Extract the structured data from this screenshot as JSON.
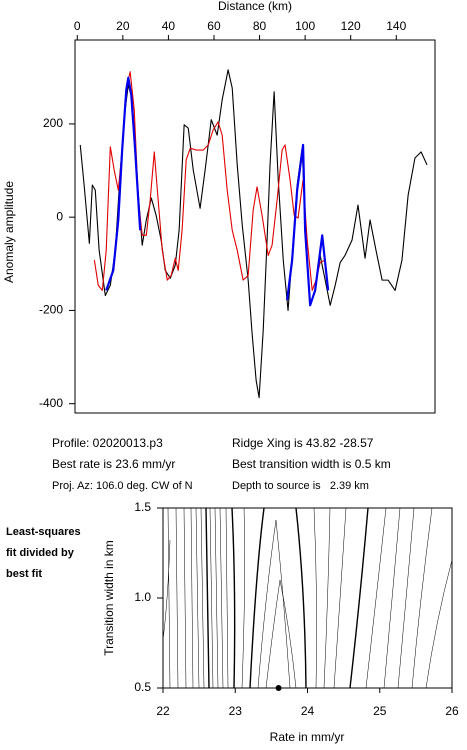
{
  "chart_data": [
    {
      "type": "line",
      "xlabel": "Distance (km)",
      "ylabel": "Anomaly amplitude",
      "xlim": [
        -1,
        157
      ],
      "xticks": [
        0,
        20,
        40,
        60,
        80,
        100,
        120,
        140
      ],
      "ylim": [
        -420,
        380
      ],
      "yticks": [
        -400,
        -200,
        0,
        200
      ],
      "series": [
        {
          "color": "#000000",
          "x": [
            1.3,
            3,
            5.3,
            6.6,
            7.9,
            9.6,
            12.3,
            14.5,
            16.7,
            18.9,
            21,
            22.4,
            24.1,
            26.3,
            28.5,
            30.3,
            32.5,
            34.6,
            36.8,
            38.6,
            40.8,
            43,
            44.7,
            46.9,
            48.7,
            50.9,
            53.9,
            56.1,
            58.8,
            61.4,
            63.6,
            66.2,
            68,
            70.2,
            72.4,
            75,
            76.8,
            78.5,
            79.8,
            81.6,
            83.3,
            84.6,
            86.4,
            88.2,
            90.4,
            92.5,
            94.3,
            96.5,
            98.7,
            100.4,
            102.2,
            104.4,
            106.6,
            108.8,
            111,
            113.2,
            115.4,
            117.5,
            120.6,
            123.2,
            126.3,
            128.5,
            131.1,
            133.8,
            136.4,
            139.5,
            142.5,
            145.2,
            148.2,
            150.9,
            153.5
          ],
          "values": [
            155,
            69,
            -56,
            69,
            58,
            -71,
            -168,
            -146,
            -71,
            101,
            230,
            284,
            252,
            80,
            -60,
            -6,
            41,
            4,
            -49,
            -114,
            -131,
            -103,
            -28,
            198,
            191,
            101,
            19,
            101,
            209,
            176,
            252,
            316,
            277,
            112,
            -17,
            -135,
            -254,
            -350,
            -387,
            -243,
            -49,
            112,
            269,
            80,
            -92,
            -200,
            -82,
            69,
            148,
            -49,
            -189,
            -157,
            -82,
            -135,
            -189,
            -146,
            -97,
            -82,
            -49,
            26,
            -88,
            -6,
            -71,
            -135,
            -135,
            -157,
            -92,
            47,
            127,
            140,
            112
          ]
        },
        {
          "color": "#e00000",
          "x": [
            7.5,
            9.2,
            11,
            12.7,
            14.5,
            16.2,
            18,
            19.7,
            21.5,
            23.2,
            25,
            26.8,
            28.5,
            30.3,
            32,
            33.8,
            35.5,
            37.3,
            39.5,
            41.2,
            43,
            44.3,
            46,
            47.8,
            49.6,
            52.2,
            55.3,
            57.5,
            59.6,
            61.8,
            63.6,
            65.8,
            68,
            70.2,
            72.8,
            75,
            77.2,
            78.9,
            81.1,
            83.8,
            85.5,
            87.7,
            89.9,
            91.2,
            93.4,
            95.2,
            96.9,
            99.1,
            100.9,
            103.1,
            104.8,
            106.6,
            108.8
          ],
          "values": [
            -92,
            -146,
            -157,
            -71,
            151,
            101,
            58,
            144,
            273,
            312,
            230,
            37,
            -39,
            -39,
            37,
            140,
            37,
            -71,
            -135,
            -125,
            -88,
            -114,
            -28,
            123,
            148,
            144,
            144,
            155,
            187,
            204,
            176,
            58,
            -28,
            -71,
            -135,
            -125,
            15,
            65,
            4,
            -82,
            -60,
            37,
            144,
            155,
            80,
            4,
            -2,
            80,
            -49,
            -157,
            -135,
            -97,
            -92
          ]
        },
        {
          "color": "#0000ee",
          "x": [
            12.7,
            15.8,
            18,
            19.7,
            21.5,
            22.4,
            23.7,
            25.4,
            27.6,
            50,
            92.1,
            94.3,
            96.5,
            99.1,
            100,
            102.2,
            104.4,
            107.5,
            110.1
          ],
          "values": [
            -157,
            -114,
            -6,
            144,
            273,
            299,
            262,
            144,
            -28,
            null,
            -178,
            -92,
            58,
            155,
            -28,
            -189,
            -157,
            -39,
            -157
          ]
        }
      ],
      "annotations": [
        "Profile: 02020013.p3",
        "Ridge Xing is 43.82 -28.57",
        "Best rate is 23.6 mm/yr",
        "Best transition width is 0.5 km",
        "Proj. Az: 106.0 deg. CW of N",
        "Depth to source is   2.39 km"
      ]
    },
    {
      "type": "scatter",
      "xlabel": "Rate in mm/yr",
      "ylabel": "Transition width in km",
      "xlim": [
        22,
        26
      ],
      "xticks": [
        22,
        23,
        24,
        25,
        26
      ],
      "ylim": [
        0.5,
        1.5
      ],
      "yticks": [
        0.5,
        {
          "value": 1,
          "label": "1.0"
        },
        1.5
      ],
      "series": [
        {
          "color": "#000000",
          "x": [
            23.6
          ],
          "values": [
            0.5
          ]
        }
      ],
      "note_lines": [
        "Least-squares",
        "fit divided by",
        "best fit"
      ]
    }
  ]
}
